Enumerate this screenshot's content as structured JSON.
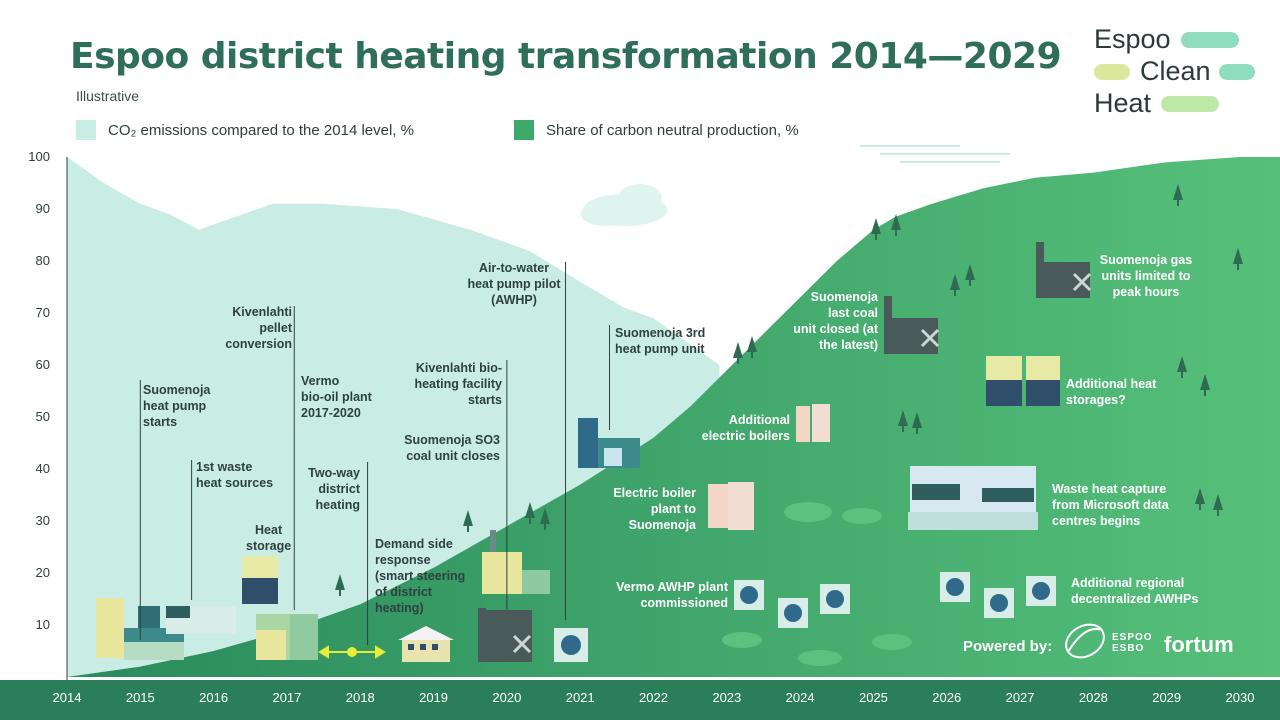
{
  "header": {
    "title": "Espoo district heating transformation 2014—2029",
    "subtitle": "Illustrative"
  },
  "brand": {
    "line1": "Espoo",
    "line2": "Clean",
    "line3": "Heat"
  },
  "legend": {
    "co2": "CO₂ emissions compared to the 2014 level, %",
    "neutral": "Share of carbon neutral production, %"
  },
  "colors": {
    "co2_area": "#c9ece5",
    "neutral_area": "#3fa96c",
    "neutral_dark": "#2a8a5c",
    "title": "#2e6e5a",
    "pill_teal": "#8fdcc0",
    "pill_yellow": "#dbe89c",
    "pill_green": "#bde8a6",
    "timeline_arrow": "#e6ec3a"
  },
  "chart_data": {
    "type": "area",
    "xlim": [
      2014,
      2030
    ],
    "ylim": [
      0,
      100
    ],
    "x_ticks": [
      2014,
      2015,
      2016,
      2017,
      2018,
      2019,
      2020,
      2021,
      2022,
      2023,
      2024,
      2025,
      2026,
      2027,
      2028,
      2029,
      2030
    ],
    "y_ticks": [
      10,
      20,
      30,
      40,
      50,
      60,
      70,
      80,
      90,
      100
    ],
    "series": [
      {
        "name": "CO₂ emissions compared to the 2014 level, %",
        "points": [
          [
            2014,
            100
          ],
          [
            2014.5,
            95
          ],
          [
            2015,
            91
          ],
          [
            2015.4,
            89
          ],
          [
            2015.8,
            86
          ],
          [
            2016.2,
            88
          ],
          [
            2016.8,
            91
          ],
          [
            2017.5,
            91
          ],
          [
            2018.5,
            90
          ],
          [
            2019.5,
            86
          ],
          [
            2020.3,
            82
          ],
          [
            2021,
            76
          ],
          [
            2021.6,
            71
          ],
          [
            2022,
            69
          ],
          [
            2022.5,
            64
          ],
          [
            2022.9,
            60
          ]
        ]
      },
      {
        "name": "Share of carbon neutral production, %",
        "points": [
          [
            2014,
            0
          ],
          [
            2015,
            2
          ],
          [
            2016,
            5
          ],
          [
            2017,
            9
          ],
          [
            2018,
            14
          ],
          [
            2019,
            21
          ],
          [
            2020,
            29
          ],
          [
            2021,
            37
          ],
          [
            2022,
            46
          ],
          [
            2022.5,
            52
          ],
          [
            2023,
            59
          ],
          [
            2023.5,
            66
          ],
          [
            2024,
            73
          ],
          [
            2024.5,
            80
          ],
          [
            2025,
            86
          ],
          [
            2025.3,
            88.5
          ],
          [
            2025.8,
            91
          ],
          [
            2026.5,
            94
          ],
          [
            2027.2,
            96
          ],
          [
            2028,
            97
          ],
          [
            2029,
            99
          ],
          [
            2030,
            100
          ]
        ]
      }
    ],
    "annotations": [
      {
        "text": "Suomenoja\nheat pump\nstarts",
        "year": 2015
      },
      {
        "text": "1st waste\nheat sources",
        "year": 2015.7
      },
      {
        "text": "Heat\nstorage",
        "year": 2016.7
      },
      {
        "text": "Kivenlahti\npellet\nconversion",
        "year": 2017.1
      },
      {
        "text": "Vermo\nbio-oil plant\n2017-2020",
        "year": 2017.1
      },
      {
        "text": "Two-way\ndistrict\nheating",
        "year": 2018.1
      },
      {
        "text": "Demand side\nresponse\n(smart steering\nof district\nheating)",
        "year": 2018.7
      },
      {
        "text": "Kivenlahti bio-\nheating facility\nstarts",
        "year": 2020
      },
      {
        "text": "Suomenoja SO3\ncoal unit closes",
        "year": 2020
      },
      {
        "text": "Air-to-water\nheat pump pilot\n(AWHP)",
        "year": 2020.8
      },
      {
        "text": "Suomenoja 3rd\nheat pump unit",
        "year": 2021.4
      },
      {
        "text": "Additional\nelectric boilers",
        "year": 2022.8
      },
      {
        "text": "Electric boiler\nplant to\nSuomenoja",
        "year": 2022.3
      },
      {
        "text": "Vermo AWHP plant\ncommissioned",
        "year": 2023
      },
      {
        "text": "Suomenoja\nlast coal\nunit closed (at\nthe latest)",
        "year": 2024.7
      },
      {
        "text": "Suomenoja gas\nunits limited to\npeak hours",
        "year": 2027.2
      },
      {
        "text": "Additional heat\nstorages?",
        "year": 2027
      },
      {
        "text": "Waste heat capture\nfrom Microsoft data\ncentres begins",
        "year": 2026.8
      },
      {
        "text": "Additional regional\ndecentralized AWHPs",
        "year": 2027
      }
    ]
  },
  "footer": {
    "powered_by": "Powered by:",
    "espoo_logo_text": "ESPOO\nESBO",
    "fortum_logo_text": "fortum"
  }
}
